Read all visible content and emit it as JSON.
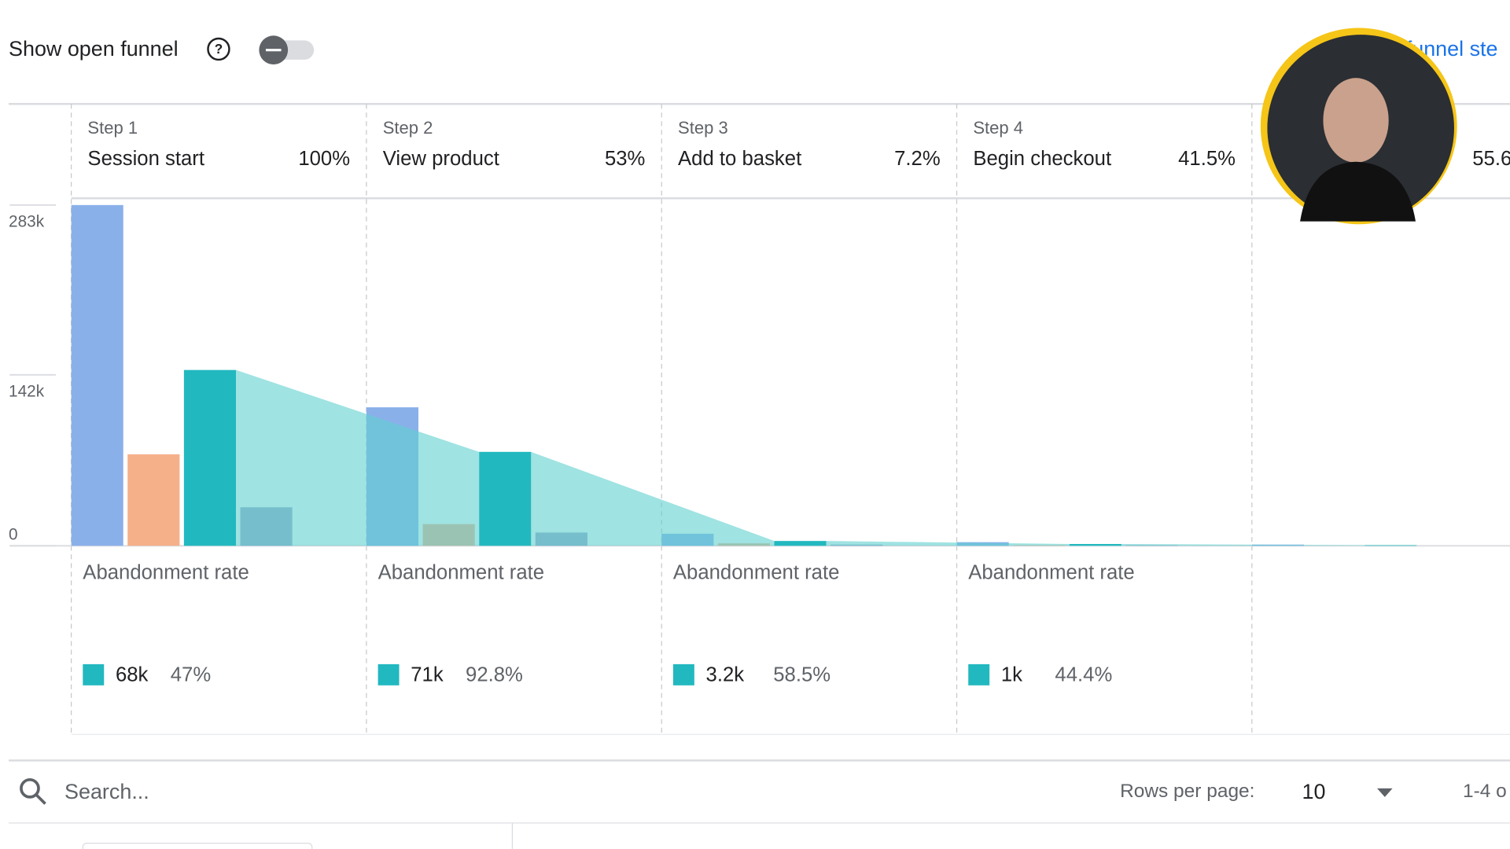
{
  "header": {
    "toggle_label": "Show open funnel",
    "link": "funnel ste"
  },
  "chart_data": {
    "type": "bar",
    "steps": [
      {
        "label": "Step 1",
        "name": "Session start",
        "rate": "100%"
      },
      {
        "label": "Step 2",
        "name": "View product",
        "rate": "53%"
      },
      {
        "label": "Step 3",
        "name": "Add to basket",
        "rate": "7.2%"
      },
      {
        "label": "Step 4",
        "name": "Begin checkout",
        "rate": "41.5%"
      },
      {
        "rate": "55.6"
      }
    ],
    "ylim": [
      0,
      283000
    ],
    "yticks": [
      0,
      {
        "value": 142000,
        "label": "142k"
      },
      {
        "value": 283000,
        "label": "283k"
      }
    ],
    "series": [
      {
        "color": "#8ab0ea",
        "values": [
          283000,
          115000,
          10000,
          3000,
          1000
        ]
      },
      {
        "color": "#f5b08a",
        "values": [
          76000,
          18000,
          2000,
          500,
          0
        ]
      },
      {
        "color": "#22b8bf",
        "values": [
          146000,
          78000,
          4000,
          1500,
          500
        ]
      },
      {
        "color": "#9aa3c8",
        "values": [
          32000,
          11000,
          1000,
          500,
          0
        ]
      }
    ],
    "area_color": "#5fd0cf",
    "abandonment": {
      "title": "Abandonment rate",
      "items": [
        {
          "count": "68k",
          "rate": "47%"
        },
        {
          "count": "71k",
          "rate": "92.8%"
        },
        {
          "count": "3.2k",
          "rate": "58.5%"
        },
        {
          "count": "1k",
          "rate": "44.4%"
        }
      ]
    }
  },
  "table": {
    "search_placeholder": "Search...",
    "rows_per_page_label": "Rows per page:",
    "rows_per_page": "10",
    "range": "1-4 o"
  }
}
